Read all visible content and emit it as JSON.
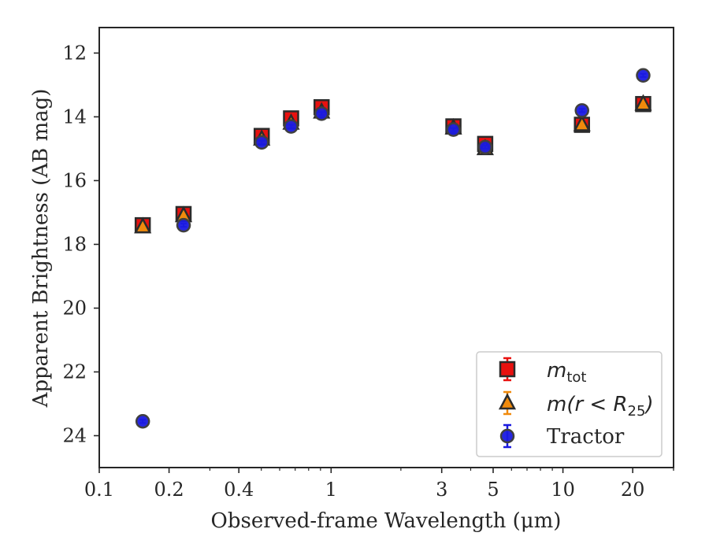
{
  "chart_data": {
    "type": "scatter",
    "xlabel": "Observed-frame Wavelength (μm)",
    "ylabel": "Apparent Brightness (AB mag)",
    "xscale": "log",
    "xlim": [
      0.1,
      30
    ],
    "ylim": [
      25.0,
      11.2
    ],
    "y_inverted": true,
    "xticks": [
      0.1,
      0.2,
      0.4,
      1,
      3,
      5,
      10,
      20
    ],
    "xtick_labels": [
      "0.1",
      "0.2",
      "0.4",
      "1",
      "3",
      "5",
      "10",
      "20"
    ],
    "yticks": [
      12,
      14,
      16,
      18,
      20,
      22,
      24
    ],
    "ytick_labels": [
      "12",
      "14",
      "16",
      "18",
      "20",
      "22",
      "24"
    ],
    "grid": false,
    "legend_position": "lower-right",
    "series": [
      {
        "name": "m_tot",
        "legend_main": "m",
        "legend_sub": "tot",
        "marker": "square",
        "color": "#e8110f",
        "edge_color": "#2b2b2b",
        "x": [
          0.154,
          0.231,
          0.502,
          0.672,
          0.91,
          3.37,
          4.62,
          12.08,
          22.19
        ],
        "y": [
          17.4,
          17.05,
          14.6,
          14.05,
          13.7,
          14.3,
          14.85,
          14.25,
          13.6
        ],
        "yerr": [
          0.1,
          0.08,
          0.08,
          0.08,
          0.08,
          0.08,
          0.08,
          0.08,
          0.08
        ]
      },
      {
        "name": "m(r < R25)",
        "legend_main": "m(r < R",
        "legend_sub": "25",
        "legend_end": ")",
        "marker": "triangle",
        "color": "#f08a0c",
        "edge_color": "#2b2b2b",
        "x": [
          0.154,
          0.231,
          0.502,
          0.672,
          0.91,
          3.37,
          4.62,
          12.08,
          22.19
        ],
        "y": [
          17.45,
          17.1,
          14.7,
          14.2,
          13.85,
          14.35,
          15.0,
          14.25,
          13.6
        ],
        "yerr": [
          0.08,
          0.08,
          0.08,
          0.08,
          0.08,
          0.08,
          0.08,
          0.08,
          0.08
        ]
      },
      {
        "name": "Tractor",
        "marker": "circle",
        "color": "#1a1ae0",
        "edge_color": "#404040",
        "x": [
          0.154,
          0.231,
          0.502,
          0.672,
          0.91,
          3.37,
          4.62,
          12.08,
          22.19
        ],
        "y": [
          23.55,
          17.4,
          14.8,
          14.3,
          13.9,
          14.4,
          14.95,
          13.8,
          12.7
        ],
        "yerr": [
          0.05,
          0.05,
          0.05,
          0.05,
          0.05,
          0.05,
          0.05,
          0.05,
          0.05
        ]
      }
    ]
  }
}
